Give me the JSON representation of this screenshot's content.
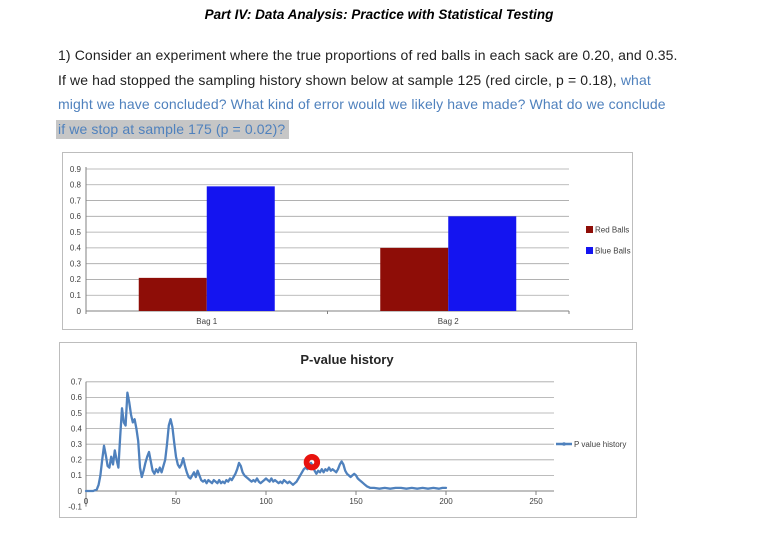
{
  "document": {
    "title": "Part IV: Data Analysis: Practice with Statistical Testing",
    "paragraph": {
      "line1": "1) Consider an experiment where the true proportions of red balls in each sack are 0.20, and 0.35.",
      "line2_black": "If we had stopped the sampling history shown below at sample 125 (red circle, p = 0.18), ",
      "line2_blue": "what",
      "line3": "might we have concluded? What kind of error would we likely have made? What do we conclude",
      "line4": "if we stop at sample 175 (p = 0.02)?"
    },
    "text_colors": {
      "body": "#1f1f1f",
      "emphasis_blue": "#4f81bd",
      "highlight_gray": "#c6c6c6"
    }
  },
  "chart_data": [
    {
      "type": "bar",
      "categories": [
        "Bag 1",
        "Bag 2"
      ],
      "series": [
        {
          "name": "Red Balls",
          "color": "#8e0d07",
          "values": [
            0.21,
            0.4
          ]
        },
        {
          "name": "Blue Balls",
          "color": "#1414f0",
          "values": [
            0.79,
            0.6
          ]
        }
      ],
      "ylim": [
        0,
        0.9
      ],
      "ytick_labels": [
        "0",
        "0.1",
        "0.2",
        "0.3",
        "0.4",
        "0.5",
        "0.6",
        "0.7",
        "0.8",
        "0.9"
      ],
      "grid": true,
      "legend_position": "right",
      "title": "",
      "xlabel": "",
      "ylabel": ""
    },
    {
      "type": "line",
      "title": "P-value history",
      "legend_label": "P value history",
      "legend_position": "right",
      "line_color": "#4f81bd",
      "grid": true,
      "xlim": [
        0,
        250
      ],
      "ylim": [
        -0.1,
        0.7
      ],
      "xticks": [
        0,
        50,
        100,
        150,
        200,
        250
      ],
      "xtick_labels": [
        "0",
        "50",
        "100",
        "150",
        "200",
        "250"
      ],
      "yticks": [
        -0.1,
        0,
        0.1,
        0.2,
        0.3,
        0.4,
        0.5,
        0.6,
        0.7
      ],
      "ytick_labels": [
        "-0.1",
        "0",
        "0.1",
        "0.2",
        "0.3",
        "0.4",
        "0.5",
        "0.6",
        "0.7"
      ],
      "highlight_marker": {
        "shape": "circle-ring",
        "color": "#e8120e",
        "x": 125.5,
        "y": 0.185
      },
      "points": [
        [
          0,
          0
        ],
        [
          2,
          0
        ],
        [
          4,
          0
        ],
        [
          6,
          0.01
        ],
        [
          7,
          0.04
        ],
        [
          8,
          0.1
        ],
        [
          9,
          0.2
        ],
        [
          10,
          0.29
        ],
        [
          11,
          0.23
        ],
        [
          12,
          0.16
        ],
        [
          13,
          0.15
        ],
        [
          14,
          0.22
        ],
        [
          15,
          0.17
        ],
        [
          16,
          0.26
        ],
        [
          17,
          0.2
        ],
        [
          18,
          0.15
        ],
        [
          19,
          0.35
        ],
        [
          20,
          0.53
        ],
        [
          21,
          0.44
        ],
        [
          22,
          0.42
        ],
        [
          23,
          0.63
        ],
        [
          24,
          0.57
        ],
        [
          25,
          0.49
        ],
        [
          26,
          0.44
        ],
        [
          27,
          0.46
        ],
        [
          28,
          0.4
        ],
        [
          29,
          0.32
        ],
        [
          30,
          0.15
        ],
        [
          31,
          0.09
        ],
        [
          32,
          0.13
        ],
        [
          33,
          0.18
        ],
        [
          34,
          0.22
        ],
        [
          35,
          0.25
        ],
        [
          36,
          0.19
        ],
        [
          37,
          0.13
        ],
        [
          38,
          0.11
        ],
        [
          39,
          0.14
        ],
        [
          40,
          0.12
        ],
        [
          41,
          0.15
        ],
        [
          42,
          0.12
        ],
        [
          43,
          0.16
        ],
        [
          44,
          0.2
        ],
        [
          45,
          0.3
        ],
        [
          46,
          0.42
        ],
        [
          47,
          0.46
        ],
        [
          48,
          0.41
        ],
        [
          49,
          0.31
        ],
        [
          50,
          0.22
        ],
        [
          51,
          0.17
        ],
        [
          52,
          0.15
        ],
        [
          53,
          0.17
        ],
        [
          54,
          0.21
        ],
        [
          55,
          0.16
        ],
        [
          56,
          0.12
        ],
        [
          57,
          0.09
        ],
        [
          58,
          0.08
        ],
        [
          59,
          0.1
        ],
        [
          60,
          0.12
        ],
        [
          61,
          0.09
        ],
        [
          62,
          0.13
        ],
        [
          63,
          0.1
        ],
        [
          64,
          0.07
        ],
        [
          65,
          0.06
        ],
        [
          66,
          0.07
        ],
        [
          67,
          0.05
        ],
        [
          68,
          0.07
        ],
        [
          69,
          0.06
        ],
        [
          70,
          0.05
        ],
        [
          71,
          0.07
        ],
        [
          72,
          0.06
        ],
        [
          73,
          0.05
        ],
        [
          74,
          0.07
        ],
        [
          75,
          0.05
        ],
        [
          76,
          0.06
        ],
        [
          77,
          0.05
        ],
        [
          78,
          0.07
        ],
        [
          79,
          0.06
        ],
        [
          80,
          0.08
        ],
        [
          81,
          0.07
        ],
        [
          82,
          0.09
        ],
        [
          83,
          0.11
        ],
        [
          84,
          0.14
        ],
        [
          85,
          0.18
        ],
        [
          86,
          0.16
        ],
        [
          87,
          0.12
        ],
        [
          88,
          0.1
        ],
        [
          89,
          0.09
        ],
        [
          90,
          0.08
        ],
        [
          91,
          0.07
        ],
        [
          92,
          0.06
        ],
        [
          93,
          0.07
        ],
        [
          94,
          0.06
        ],
        [
          95,
          0.08
        ],
        [
          96,
          0.06
        ],
        [
          97,
          0.05
        ],
        [
          98,
          0.06
        ],
        [
          99,
          0.07
        ],
        [
          100,
          0.08
        ],
        [
          101,
          0.07
        ],
        [
          102,
          0.06
        ],
        [
          103,
          0.08
        ],
        [
          104,
          0.06
        ],
        [
          105,
          0.07
        ],
        [
          106,
          0.06
        ],
        [
          107,
          0.05
        ],
        [
          108,
          0.06
        ],
        [
          109,
          0.05
        ],
        [
          110,
          0.07
        ],
        [
          111,
          0.06
        ],
        [
          112,
          0.05
        ],
        [
          113,
          0.06
        ],
        [
          114,
          0.05
        ],
        [
          115,
          0.04
        ],
        [
          116,
          0.05
        ],
        [
          117,
          0.06
        ],
        [
          118,
          0.08
        ],
        [
          119,
          0.1
        ],
        [
          120,
          0.12
        ],
        [
          121,
          0.14
        ],
        [
          122,
          0.15
        ],
        [
          123,
          0.14
        ],
        [
          124,
          0.16
        ],
        [
          125,
          0.18
        ],
        [
          126,
          0.16
        ],
        [
          127,
          0.13
        ],
        [
          128,
          0.11
        ],
        [
          129,
          0.13
        ],
        [
          130,
          0.12
        ],
        [
          131,
          0.14
        ],
        [
          132,
          0.12
        ],
        [
          133,
          0.14
        ],
        [
          134,
          0.13
        ],
        [
          135,
          0.15
        ],
        [
          136,
          0.13
        ],
        [
          137,
          0.14
        ],
        [
          138,
          0.13
        ],
        [
          139,
          0.12
        ],
        [
          140,
          0.14
        ],
        [
          141,
          0.17
        ],
        [
          142,
          0.19
        ],
        [
          143,
          0.17
        ],
        [
          144,
          0.13
        ],
        [
          145,
          0.11
        ],
        [
          146,
          0.1
        ],
        [
          147,
          0.09
        ],
        [
          148,
          0.1
        ],
        [
          149,
          0.11
        ],
        [
          150,
          0.1
        ],
        [
          151,
          0.08
        ],
        [
          152,
          0.07
        ],
        [
          153,
          0.06
        ],
        [
          154,
          0.05
        ],
        [
          155,
          0.04
        ],
        [
          156,
          0.03
        ],
        [
          158,
          0.02
        ],
        [
          160,
          0.02
        ],
        [
          163,
          0.015
        ],
        [
          166,
          0.02
        ],
        [
          169,
          0.015
        ],
        [
          172,
          0.02
        ],
        [
          175,
          0.02
        ],
        [
          178,
          0.015
        ],
        [
          181,
          0.02
        ],
        [
          184,
          0.015
        ],
        [
          187,
          0.02
        ],
        [
          190,
          0.015
        ],
        [
          193,
          0.02
        ],
        [
          196,
          0.015
        ],
        [
          198,
          0.02
        ],
        [
          200,
          0.02
        ]
      ]
    }
  ]
}
